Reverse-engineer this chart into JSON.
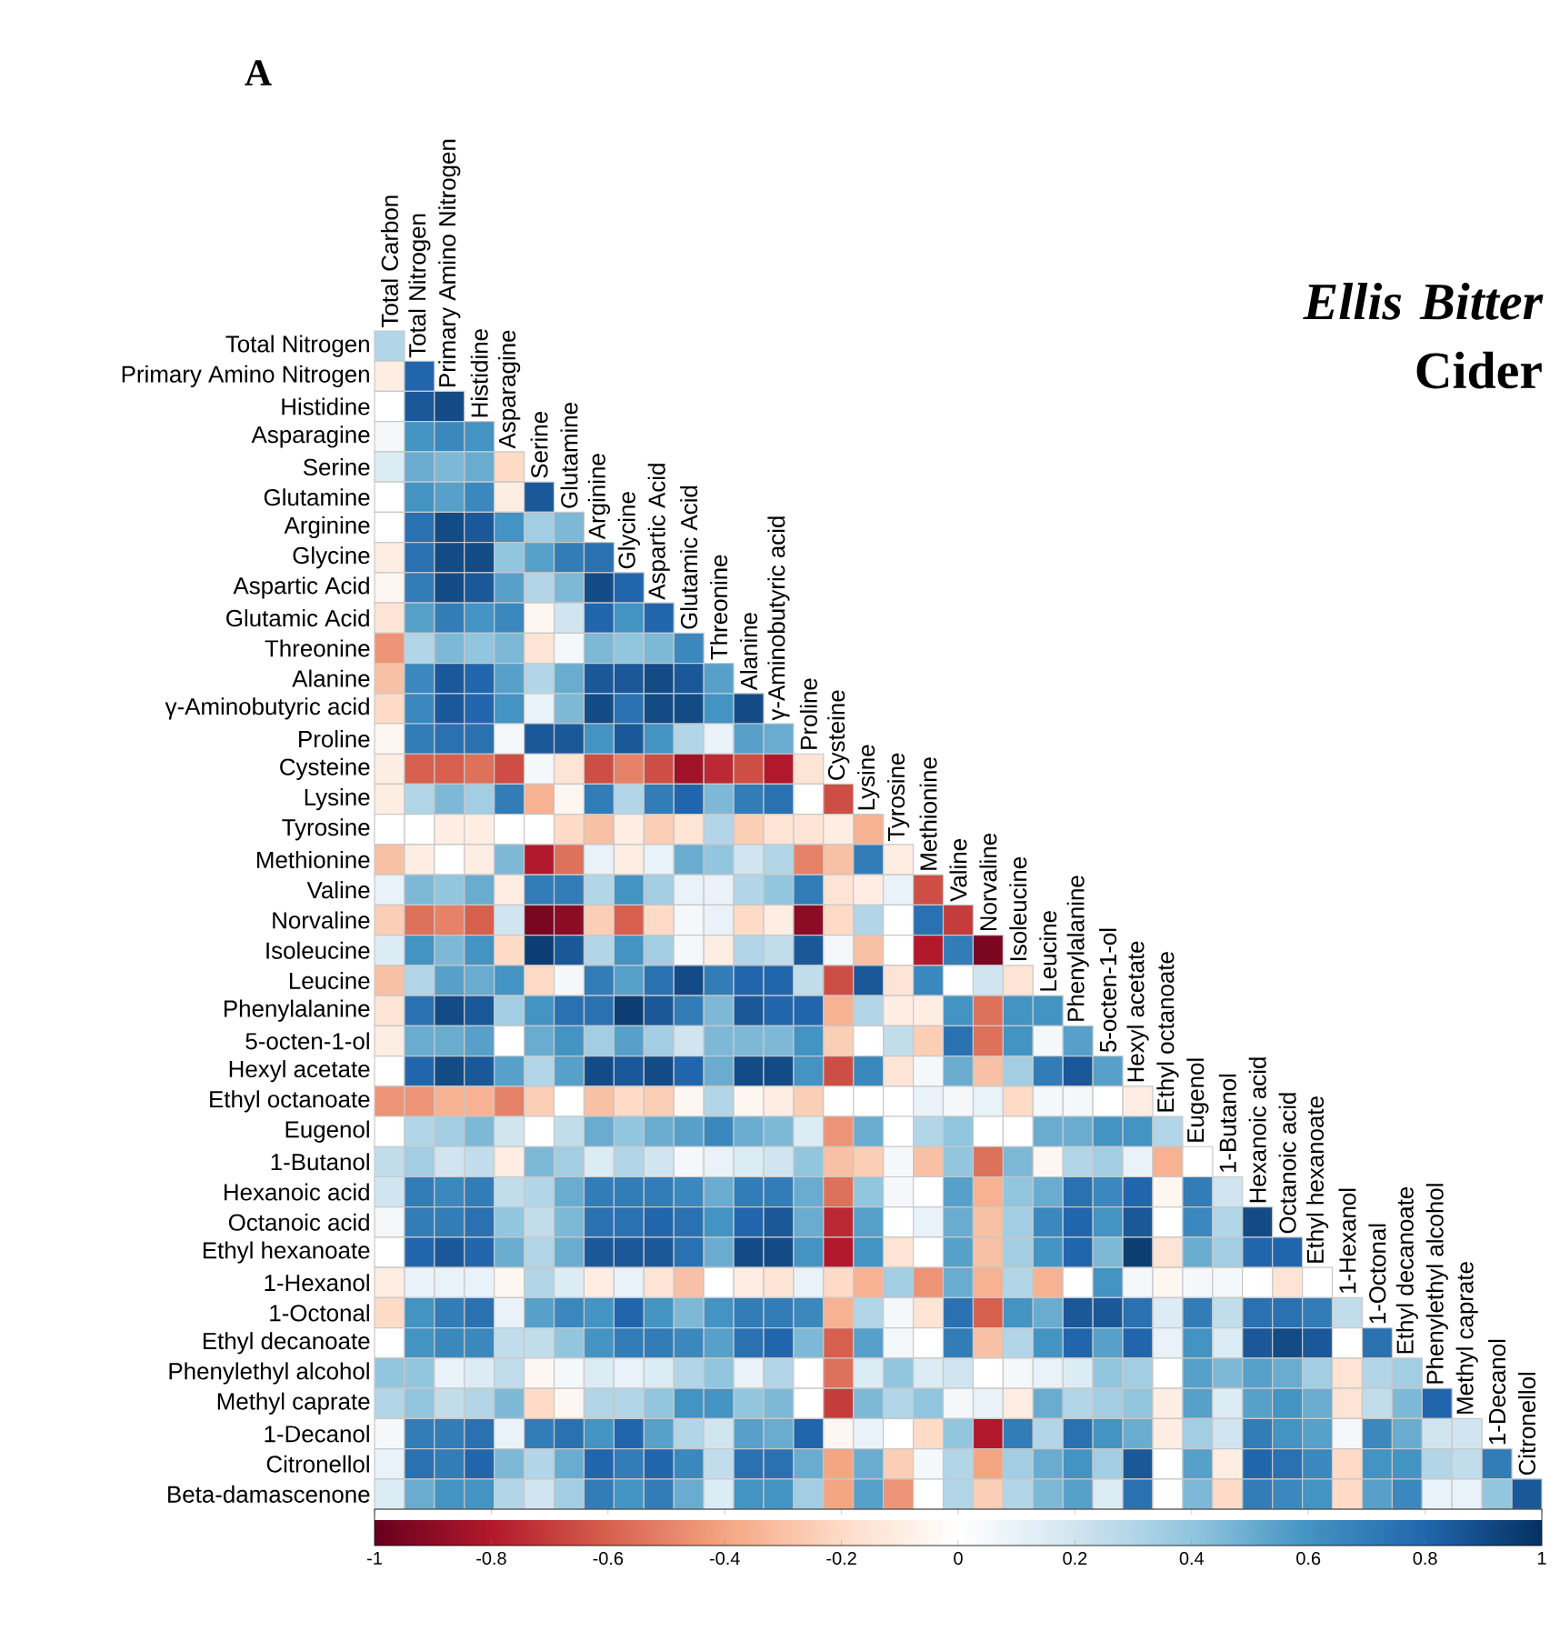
{
  "chart_data": {
    "type": "heatmap",
    "title": "*Ellis Bitter* Cider",
    "annotations": [
      "A"
    ],
    "categories": [
      "Total Carbon",
      "Total Nitrogen",
      "Primary Amino Nitrogen",
      "Histidine",
      "Asparagine",
      "Serine",
      "Glutamine",
      "Arginine",
      "Glycine",
      "Aspartic Acid",
      "Glutamic Acid",
      "Threonine",
      "Alanine",
      "γ-Aminobutyric acid",
      "Proline",
      "Cysteine",
      "Lysine",
      "Tyrosine",
      "Methionine",
      "Valine",
      "Norvaline",
      "Isoleucine",
      "Leucine",
      "Phenylalanine",
      "5-octen-1-ol",
      "Hexyl acetate",
      "Ethyl octanoate",
      "Eugenol",
      "1-Butanol",
      "Hexanoic acid",
      "Octanoic acid",
      "Ethyl hexanoate",
      "1-Hexanol",
      "1-Octonal",
      "Ethyl decanoate",
      "Phenylethyl alcohol",
      "Methyl caprate",
      "1-Decanol",
      "Citronellol"
    ],
    "y_categories": [
      "Total Nitrogen",
      "Primary Amino Nitrogen",
      "Histidine",
      "Asparagine",
      "Serine",
      "Glutamine",
      "Arginine",
      "Glycine",
      "Aspartic Acid",
      "Glutamic Acid",
      "Threonine",
      "Alanine",
      "γ-Aminobutyric acid",
      "Proline",
      "Cysteine",
      "Lysine",
      "Tyrosine",
      "Methionine",
      "Valine",
      "Norvaline",
      "Isoleucine",
      "Leucine",
      "Phenylalanine",
      "5-octen-1-ol",
      "Hexyl acetate",
      "Ethyl octanoate",
      "Eugenol",
      "1-Butanol",
      "Hexanoic acid",
      "Octanoic acid",
      "Ethyl hexanoate",
      "1-Hexanol",
      "1-Octonal",
      "Ethyl decanoate",
      "Phenylethyl alcohol",
      "Methyl caprate",
      "1-Decanol",
      "Citronellol",
      "Beta-damascenone"
    ],
    "cells": [
      [
        0.3,
        null,
        null,
        null,
        null,
        null,
        null,
        null,
        null,
        null,
        null,
        null,
        null,
        null,
        null,
        null,
        null,
        null,
        null,
        null,
        null,
        null,
        null,
        null,
        null,
        null,
        null,
        null,
        null,
        null,
        null,
        null,
        null,
        null,
        null,
        null,
        null,
        null,
        null
      ],
      [
        -0.1,
        0.8,
        null,
        null,
        null,
        null,
        null,
        null,
        null,
        null,
        null,
        null,
        null,
        null,
        null,
        null,
        null,
        null,
        null,
        null,
        null,
        null,
        null,
        null,
        null,
        null,
        null,
        null,
        null,
        null,
        null,
        null,
        null,
        null,
        null,
        null,
        null,
        null,
        null
      ],
      [
        0,
        0.85,
        0.9,
        null,
        null,
        null,
        null,
        null,
        null,
        null,
        null,
        null,
        null,
        null,
        null,
        null,
        null,
        null,
        null,
        null,
        null,
        null,
        null,
        null,
        null,
        null,
        null,
        null,
        null,
        null,
        null,
        null,
        null,
        null,
        null,
        null,
        null,
        null,
        null
      ],
      [
        0.05,
        0.6,
        0.65,
        0.6,
        null,
        null,
        null,
        null,
        null,
        null,
        null,
        null,
        null,
        null,
        null,
        null,
        null,
        null,
        null,
        null,
        null,
        null,
        null,
        null,
        null,
        null,
        null,
        null,
        null,
        null,
        null,
        null,
        null,
        null,
        null,
        null,
        null,
        null,
        null
      ],
      [
        0.15,
        0.5,
        0.45,
        0.5,
        -0.2,
        null,
        null,
        null,
        null,
        null,
        null,
        null,
        null,
        null,
        null,
        null,
        null,
        null,
        null,
        null,
        null,
        null,
        null,
        null,
        null,
        null,
        null,
        null,
        null,
        null,
        null,
        null,
        null,
        null,
        null,
        null,
        null,
        null,
        null
      ],
      [
        0,
        0.6,
        0.55,
        0.65,
        -0.1,
        0.85,
        null,
        null,
        null,
        null,
        null,
        null,
        null,
        null,
        null,
        null,
        null,
        null,
        null,
        null,
        null,
        null,
        null,
        null,
        null,
        null,
        null,
        null,
        null,
        null,
        null,
        null,
        null,
        null,
        null,
        null,
        null,
        null,
        null
      ],
      [
        0,
        0.75,
        0.9,
        0.85,
        0.6,
        0.35,
        0.45,
        null,
        null,
        null,
        null,
        null,
        null,
        null,
        null,
        null,
        null,
        null,
        null,
        null,
        null,
        null,
        null,
        null,
        null,
        null,
        null,
        null,
        null,
        null,
        null,
        null,
        null,
        null,
        null,
        null,
        null,
        null,
        null
      ],
      [
        -0.1,
        0.75,
        0.9,
        0.9,
        0.4,
        0.55,
        0.7,
        0.75,
        null,
        null,
        null,
        null,
        null,
        null,
        null,
        null,
        null,
        null,
        null,
        null,
        null,
        null,
        null,
        null,
        null,
        null,
        null,
        null,
        null,
        null,
        null,
        null,
        null,
        null,
        null,
        null,
        null,
        null,
        null
      ],
      [
        -0.05,
        0.7,
        0.9,
        0.85,
        0.55,
        0.3,
        0.45,
        0.9,
        0.8,
        null,
        null,
        null,
        null,
        null,
        null,
        null,
        null,
        null,
        null,
        null,
        null,
        null,
        null,
        null,
        null,
        null,
        null,
        null,
        null,
        null,
        null,
        null,
        null,
        null,
        null,
        null,
        null,
        null,
        null
      ],
      [
        -0.15,
        0.55,
        0.7,
        0.6,
        0.65,
        -0.05,
        0.2,
        0.8,
        0.6,
        0.8,
        null,
        null,
        null,
        null,
        null,
        null,
        null,
        null,
        null,
        null,
        null,
        null,
        null,
        null,
        null,
        null,
        null,
        null,
        null,
        null,
        null,
        null,
        null,
        null,
        null,
        null,
        null,
        null,
        null
      ],
      [
        -0.45,
        0.3,
        0.45,
        0.4,
        0.45,
        -0.15,
        0.05,
        0.45,
        0.4,
        0.45,
        0.65,
        null,
        null,
        null,
        null,
        null,
        null,
        null,
        null,
        null,
        null,
        null,
        null,
        null,
        null,
        null,
        null,
        null,
        null,
        null,
        null,
        null,
        null,
        null,
        null,
        null,
        null,
        null,
        null
      ],
      [
        -0.3,
        0.65,
        0.85,
        0.8,
        0.55,
        0.3,
        0.5,
        0.85,
        0.85,
        0.9,
        0.85,
        0.55,
        null,
        null,
        null,
        null,
        null,
        null,
        null,
        null,
        null,
        null,
        null,
        null,
        null,
        null,
        null,
        null,
        null,
        null,
        null,
        null,
        null,
        null,
        null,
        null,
        null,
        null,
        null
      ],
      [
        -0.2,
        0.65,
        0.85,
        0.8,
        0.6,
        0.1,
        0.45,
        0.9,
        0.75,
        0.9,
        0.9,
        0.6,
        0.9,
        null,
        null,
        null,
        null,
        null,
        null,
        null,
        null,
        null,
        null,
        null,
        null,
        null,
        null,
        null,
        null,
        null,
        null,
        null,
        null,
        null,
        null,
        null,
        null,
        null,
        null
      ],
      [
        -0.05,
        0.7,
        0.75,
        0.75,
        0.05,
        0.85,
        0.85,
        0.6,
        0.85,
        0.6,
        0.3,
        0.1,
        0.55,
        0.5,
        null,
        null,
        null,
        null,
        null,
        null,
        null,
        null,
        null,
        null,
        null,
        null,
        null,
        null,
        null,
        null,
        null,
        null,
        null,
        null,
        null,
        null,
        null,
        null,
        null
      ],
      [
        -0.1,
        -0.6,
        -0.6,
        -0.55,
        -0.65,
        0.05,
        -0.15,
        -0.65,
        -0.5,
        -0.65,
        -0.85,
        -0.75,
        -0.65,
        -0.8,
        -0.15,
        null,
        null,
        null,
        null,
        null,
        null,
        null,
        null,
        null,
        null,
        null,
        null,
        null,
        null,
        null,
        null,
        null,
        null,
        null,
        null,
        null,
        null,
        null,
        null
      ],
      [
        -0.1,
        0.3,
        0.45,
        0.35,
        0.7,
        -0.35,
        -0.05,
        0.7,
        0.3,
        0.7,
        0.8,
        0.45,
        0.7,
        0.75,
        0,
        -0.65,
        null,
        null,
        null,
        null,
        null,
        null,
        null,
        null,
        null,
        null,
        null,
        null,
        null,
        null,
        null,
        null,
        null,
        null,
        null,
        null,
        null,
        null,
        null
      ],
      [
        0,
        0,
        -0.1,
        -0.1,
        0,
        0,
        -0.2,
        -0.3,
        -0.1,
        -0.25,
        -0.15,
        0.3,
        -0.25,
        -0.15,
        -0.15,
        -0.1,
        -0.35,
        null,
        null,
        null,
        null,
        null,
        null,
        null,
        null,
        null,
        null,
        null,
        null,
        null,
        null,
        null,
        null,
        null,
        null,
        null,
        null,
        null,
        null
      ],
      [
        -0.3,
        -0.1,
        0,
        -0.1,
        0.45,
        -0.8,
        -0.55,
        0.1,
        -0.1,
        0.1,
        0.5,
        0.4,
        0.2,
        0.3,
        -0.5,
        -0.3,
        0.7,
        -0.1,
        null,
        null,
        null,
        null,
        null,
        null,
        null,
        null,
        null,
        null,
        null,
        null,
        null,
        null,
        null,
        null,
        null,
        null,
        null,
        null,
        null
      ],
      [
        0.1,
        0.45,
        0.4,
        0.5,
        -0.1,
        0.7,
        0.7,
        0.3,
        0.6,
        0.35,
        0.1,
        0.1,
        0.3,
        0.4,
        0.7,
        -0.15,
        -0.1,
        0.1,
        -0.65,
        null,
        null,
        null,
        null,
        null,
        null,
        null,
        null,
        null,
        null,
        null,
        null,
        null,
        null,
        null,
        null,
        null,
        null,
        null,
        null
      ],
      [
        -0.25,
        -0.55,
        -0.5,
        -0.6,
        0.2,
        -0.95,
        -0.9,
        -0.25,
        -0.6,
        -0.2,
        0.05,
        0.1,
        -0.2,
        -0.1,
        -0.9,
        -0.2,
        0.3,
        0,
        0.75,
        -0.7,
        null,
        null,
        null,
        null,
        null,
        null,
        null,
        null,
        null,
        null,
        null,
        null,
        null,
        null,
        null,
        null,
        null,
        null,
        null
      ],
      [
        0.15,
        0.6,
        0.45,
        0.6,
        -0.2,
        0.95,
        0.85,
        0.3,
        0.6,
        0.35,
        0.05,
        -0.1,
        0.3,
        0.25,
        0.85,
        0.05,
        -0.3,
        0,
        -0.8,
        0.7,
        -0.95,
        null,
        null,
        null,
        null,
        null,
        null,
        null,
        null,
        null,
        null,
        null,
        null,
        null,
        null,
        null,
        null,
        null,
        null
      ],
      [
        -0.3,
        0.3,
        0.55,
        0.5,
        0.6,
        -0.2,
        0.05,
        0.7,
        0.55,
        0.75,
        0.9,
        0.7,
        0.8,
        0.8,
        0.25,
        -0.65,
        0.85,
        -0.15,
        0.65,
        0,
        0.2,
        -0.15,
        null,
        null,
        null,
        null,
        null,
        null,
        null,
        null,
        null,
        null,
        null,
        null,
        null,
        null,
        null,
        null,
        null
      ],
      [
        -0.15,
        0.75,
        0.9,
        0.85,
        0.35,
        0.6,
        0.75,
        0.75,
        0.95,
        0.85,
        0.7,
        0.45,
        0.85,
        0.8,
        0.8,
        -0.35,
        0.3,
        -0.1,
        -0.1,
        0.6,
        -0.55,
        0.6,
        0.6,
        null,
        null,
        null,
        null,
        null,
        null,
        null,
        null,
        null,
        null,
        null,
        null,
        null,
        null,
        null,
        null
      ],
      [
        -0.1,
        0.5,
        0.5,
        0.55,
        0,
        0.5,
        0.6,
        0.35,
        0.55,
        0.35,
        0.2,
        0.45,
        0.45,
        0.45,
        0.6,
        -0.25,
        0,
        0.25,
        -0.25,
        0.75,
        -0.55,
        0.6,
        0.05,
        0.55,
        null,
        null,
        null,
        null,
        null,
        null,
        null,
        null,
        null,
        null,
        null,
        null,
        null,
        null,
        null
      ],
      [
        0,
        0.8,
        0.9,
        0.85,
        0.55,
        0.3,
        0.55,
        0.9,
        0.85,
        0.9,
        0.8,
        0.5,
        0.9,
        0.9,
        0.6,
        -0.65,
        0.65,
        -0.15,
        0.05,
        0.5,
        -0.3,
        0.35,
        0.7,
        0.85,
        0.55,
        null,
        null,
        null,
        null,
        null,
        null,
        null,
        null,
        null,
        null,
        null,
        null,
        null,
        null
      ],
      [
        -0.45,
        -0.45,
        -0.35,
        -0.35,
        -0.5,
        -0.25,
        0,
        -0.3,
        -0.2,
        -0.25,
        -0.05,
        0.3,
        -0.05,
        -0.1,
        -0.25,
        0,
        0,
        0,
        0.1,
        0.05,
        0.1,
        -0.2,
        0.05,
        0.05,
        0,
        -0.1,
        null,
        null,
        null,
        null,
        null,
        null,
        null,
        null,
        null,
        null,
        null,
        null,
        null
      ],
      [
        0,
        0.3,
        0.35,
        0.45,
        0.2,
        0,
        0.25,
        0.5,
        0.4,
        0.5,
        0.55,
        0.65,
        0.5,
        0.45,
        0.15,
        -0.45,
        0.5,
        0,
        0.3,
        0.4,
        0,
        0,
        0.5,
        0.5,
        0.6,
        0.6,
        0.3,
        null,
        null,
        null,
        null,
        null,
        null,
        null,
        null,
        null,
        null,
        null,
        null
      ],
      [
        0.25,
        0.35,
        0.2,
        0.25,
        -0.1,
        0.45,
        0.35,
        0.15,
        0.3,
        0.2,
        0.05,
        0.1,
        0.15,
        0.2,
        0.4,
        -0.3,
        -0.25,
        0.05,
        -0.3,
        0.4,
        -0.55,
        0.45,
        -0.05,
        0.3,
        0.35,
        0.1,
        -0.35,
        0,
        null,
        null,
        null,
        null,
        null,
        null,
        null,
        null,
        null,
        null,
        null
      ],
      [
        0.2,
        0.7,
        0.65,
        0.7,
        0.25,
        0.3,
        0.5,
        0.7,
        0.7,
        0.7,
        0.65,
        0.5,
        0.7,
        0.7,
        0.5,
        -0.55,
        0.4,
        0.05,
        0,
        0.55,
        -0.35,
        0.4,
        0.5,
        0.75,
        0.65,
        0.8,
        -0.05,
        0.7,
        0.2,
        null,
        null,
        null,
        null,
        null,
        null,
        null,
        null,
        null,
        null
      ],
      [
        0.05,
        0.7,
        0.7,
        0.75,
        0.4,
        0.25,
        0.45,
        0.75,
        0.75,
        0.8,
        0.75,
        0.6,
        0.8,
        0.85,
        0.5,
        -0.75,
        0.55,
        0,
        0.1,
        0.5,
        -0.3,
        0.35,
        0.65,
        0.8,
        0.6,
        0.85,
        0,
        0.65,
        0.3,
        0.9,
        null,
        null,
        null,
        null,
        null,
        null,
        null,
        null,
        null
      ],
      [
        0,
        0.8,
        0.85,
        0.8,
        0.5,
        0.3,
        0.5,
        0.85,
        0.85,
        0.85,
        0.75,
        0.5,
        0.9,
        0.9,
        0.6,
        -0.8,
        0.6,
        -0.15,
        0,
        0.55,
        -0.3,
        0.35,
        0.6,
        0.8,
        0.45,
        0.95,
        -0.15,
        0.5,
        0.35,
        0.8,
        0.8,
        null,
        null,
        null,
        null,
        null,
        null,
        null,
        null
      ],
      [
        -0.1,
        0.1,
        0.1,
        0.1,
        -0.05,
        0.3,
        0.15,
        -0.1,
        0.1,
        -0.15,
        -0.3,
        0,
        -0.1,
        -0.15,
        0.1,
        -0.2,
        -0.35,
        0.35,
        -0.45,
        0.5,
        -0.35,
        0.3,
        -0.35,
        0,
        0.6,
        0.05,
        -0.05,
        0.05,
        0.05,
        0,
        -0.15,
        0,
        null,
        null,
        null,
        null,
        null,
        null,
        null
      ],
      [
        -0.2,
        0.6,
        0.7,
        0.75,
        0.1,
        0.55,
        0.65,
        0.6,
        0.8,
        0.6,
        0.45,
        0.6,
        0.7,
        0.7,
        0.65,
        -0.35,
        0.3,
        0.05,
        -0.15,
        0.75,
        -0.6,
        0.6,
        0.5,
        0.85,
        0.85,
        0.75,
        0.15,
        0.7,
        0.25,
        0.75,
        0.75,
        0.7,
        0.25,
        null,
        null,
        null,
        null,
        null,
        null
      ],
      [
        0,
        0.6,
        0.65,
        0.65,
        0.25,
        0.25,
        0.4,
        0.6,
        0.7,
        0.7,
        0.65,
        0.55,
        0.75,
        0.8,
        0.45,
        -0.6,
        0.55,
        0.05,
        0,
        0.7,
        -0.3,
        0.3,
        0.6,
        0.8,
        0.55,
        0.8,
        0.1,
        0.6,
        0.15,
        0.85,
        0.9,
        0.85,
        0,
        0.75,
        null,
        null,
        null,
        null,
        null
      ],
      [
        0.4,
        0.4,
        0.1,
        0.15,
        0.25,
        -0.05,
        0.05,
        0.15,
        0.1,
        0.15,
        0.3,
        0.4,
        0.1,
        0.3,
        0,
        -0.55,
        0.15,
        0.4,
        0.15,
        0.2,
        0,
        0.05,
        0.1,
        0.15,
        0.4,
        0.35,
        0,
        0.55,
        0.45,
        0.55,
        0.5,
        0.35,
        -0.15,
        0.3,
        0.35,
        null,
        null,
        null,
        null
      ],
      [
        0.3,
        0.4,
        0.25,
        0.3,
        0.45,
        -0.2,
        -0.05,
        0.3,
        0.3,
        0.4,
        0.6,
        0.6,
        0.4,
        0.45,
        0,
        -0.7,
        0.45,
        0.3,
        0.4,
        0.05,
        0.1,
        -0.1,
        0.5,
        0.3,
        0.35,
        0.4,
        -0.1,
        0.55,
        0.15,
        0.55,
        0.6,
        0.5,
        -0.15,
        0.25,
        0.45,
        0.8,
        null,
        null,
        null
      ],
      [
        0.05,
        0.7,
        0.7,
        0.75,
        0.1,
        0.7,
        0.75,
        0.6,
        0.8,
        0.55,
        0.3,
        0.2,
        0.55,
        0.5,
        0.8,
        -0.05,
        0.1,
        0,
        -0.2,
        0.4,
        -0.8,
        0.7,
        0.3,
        0.75,
        0.6,
        0.5,
        -0.1,
        0.35,
        0.2,
        0.7,
        0.6,
        0.55,
        0.05,
        0.65,
        0.5,
        0.2,
        0.2,
        null,
        null
      ],
      [
        0.1,
        0.75,
        0.7,
        0.8,
        0.45,
        0.3,
        0.5,
        0.8,
        0.7,
        0.8,
        0.65,
        0.25,
        0.75,
        0.75,
        0.5,
        -0.4,
        0.5,
        -0.25,
        0.05,
        0.3,
        -0.4,
        0.35,
        0.5,
        0.6,
        0.35,
        0.85,
        0,
        0.55,
        -0.1,
        0.8,
        0.75,
        0.65,
        -0.2,
        0.6,
        0.6,
        0.3,
        0.25,
        0.7,
        null
      ],
      [
        0.15,
        0.5,
        0.6,
        0.6,
        0.3,
        0.2,
        0.35,
        0.7,
        0.6,
        0.7,
        0.5,
        0.15,
        0.6,
        0.6,
        0.35,
        -0.4,
        0.55,
        -0.45,
        0,
        0.3,
        -0.25,
        0.3,
        0.45,
        0.55,
        0.15,
        0.75,
        0,
        0.45,
        -0.2,
        0.7,
        0.65,
        0.6,
        -0.2,
        0.55,
        0.65,
        0.1,
        0.1,
        0.4,
        0.85
      ]
    ],
    "clim": [
      -1,
      1
    ],
    "cticks": [
      -1,
      -0.8,
      -0.6,
      -0.4,
      -0.2,
      0,
      0.2,
      0.4,
      0.6,
      0.8,
      1
    ]
  }
}
